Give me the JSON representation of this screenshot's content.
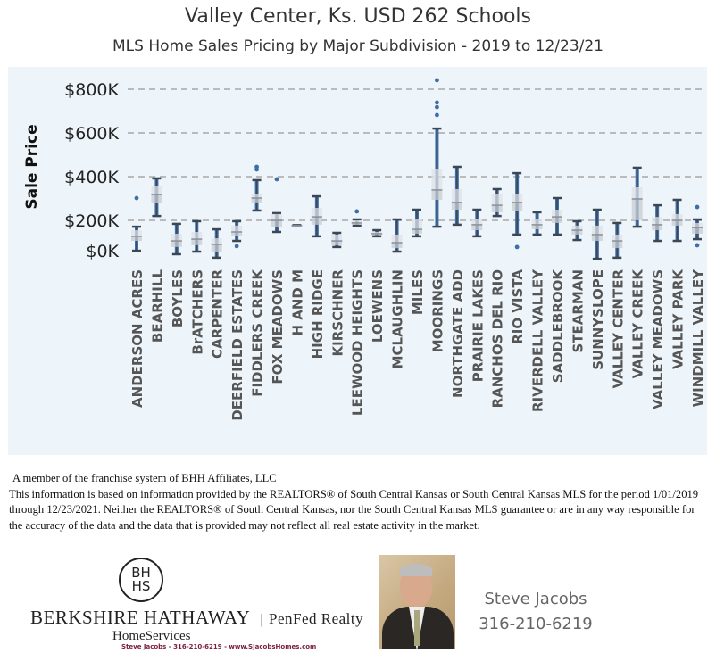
{
  "header": {
    "title": "Valley Center, Ks. USD 262 Schools",
    "subtitle": "MLS Home Sales Pricing by Major Subdivision - 2019  to 12/23/21"
  },
  "colors": {
    "background": "#eef5fa",
    "points": "#3e6ea6",
    "whisker": "#3c4756",
    "box": "#c8ccd2",
    "grid": "#bbbbbb"
  },
  "chart_data": {
    "type": "box",
    "ylabel": "Sale Price",
    "ylim": [
      0,
      850
    ],
    "yticks": [
      0,
      200,
      400,
      600,
      800
    ],
    "ytick_labels": [
      "$0K",
      "$200K",
      "$400K",
      "$600K",
      "$800K"
    ],
    "grid": "horizontal dashed",
    "units": "$K",
    "categories": [
      "ANDERSON ACRES",
      "BEARHILL",
      "BOYLES",
      "BrATCHERS",
      "CARPENTER",
      "DEERFIELD ESTATES",
      "FIDDLERS CREEK",
      "FOX MEADOWS",
      "H AND M",
      "HIGH RIDGE",
      "KIRSCHNER",
      "LEEWOOD HEIGHTS",
      "LOEWENS",
      "MCLAUGHLIN",
      "MILES",
      "MOORINGS",
      "NORTHGATE ADD",
      "PRAIRIE LAKES",
      "RANCHOS DEL RIO",
      "RIO VISTA",
      "RIVERDELL VALLEY",
      "SADDLEBROOK",
      "STEARMAN",
      "SUNNYSLOPE",
      "VALLEY CENTER",
      "VALLEY CREEK",
      "VALLEY MEADOWS",
      "VALLEY PARK",
      "WINDMILL VALLEY"
    ],
    "boxes": [
      {
        "min": 61,
        "q1": 106,
        "median": 127,
        "q3": 155,
        "max": 171,
        "outliers": [
          302
        ]
      },
      {
        "min": 220,
        "q1": 278,
        "median": 318,
        "q3": 359,
        "max": 392,
        "outliers": []
      },
      {
        "min": 45,
        "q1": 78,
        "median": 106,
        "q3": 139,
        "max": 184,
        "outliers": []
      },
      {
        "min": 57,
        "q1": 86,
        "median": 114,
        "q3": 147,
        "max": 196,
        "outliers": []
      },
      {
        "min": 29,
        "q1": 53,
        "median": 90,
        "q3": 118,
        "max": 159,
        "outliers": []
      },
      {
        "min": 106,
        "q1": 127,
        "median": 147,
        "q3": 176,
        "max": 196,
        "outliers": [
          82
        ]
      },
      {
        "min": 245,
        "q1": 282,
        "median": 302,
        "q3": 322,
        "max": 384,
        "outliers": [
          433,
          445
        ]
      },
      {
        "min": 147,
        "q1": 167,
        "median": 200,
        "q3": 229,
        "max": 233,
        "outliers": [
          388
        ]
      },
      {
        "min": 174,
        "q1": 175,
        "median": 176,
        "q3": 177,
        "max": 178,
        "outliers": []
      },
      {
        "min": 127,
        "q1": 180,
        "median": 216,
        "q3": 257,
        "max": 310,
        "outliers": []
      },
      {
        "min": 78,
        "q1": 86,
        "median": 106,
        "q3": 135,
        "max": 143,
        "outliers": []
      },
      {
        "min": 176,
        "q1": 180,
        "median": 188,
        "q3": 200,
        "max": 204,
        "outliers": [
          241
        ]
      },
      {
        "min": 127,
        "q1": 133,
        "median": 139,
        "q3": 147,
        "max": 155,
        "outliers": []
      },
      {
        "min": 57,
        "q1": 73,
        "median": 98,
        "q3": 135,
        "max": 204,
        "outliers": []
      },
      {
        "min": 127,
        "q1": 139,
        "median": 159,
        "q3": 208,
        "max": 249,
        "outliers": []
      },
      {
        "min": 171,
        "q1": 294,
        "median": 339,
        "q3": 433,
        "max": 620,
        "outliers": [
          682,
          718,
          739,
          841
        ]
      },
      {
        "min": 180,
        "q1": 249,
        "median": 282,
        "q3": 343,
        "max": 445,
        "outliers": []
      },
      {
        "min": 127,
        "q1": 155,
        "median": 180,
        "q3": 208,
        "max": 249,
        "outliers": []
      },
      {
        "min": 220,
        "q1": 237,
        "median": 269,
        "q3": 322,
        "max": 343,
        "outliers": []
      },
      {
        "min": 135,
        "q1": 241,
        "median": 282,
        "q3": 322,
        "max": 416,
        "outliers": [
          78
        ]
      },
      {
        "min": 135,
        "q1": 159,
        "median": 180,
        "q3": 208,
        "max": 237,
        "outliers": []
      },
      {
        "min": 135,
        "q1": 188,
        "median": 216,
        "q3": 249,
        "max": 302,
        "outliers": []
      },
      {
        "min": 110,
        "q1": 135,
        "median": 155,
        "q3": 176,
        "max": 196,
        "outliers": []
      },
      {
        "min": 24,
        "q1": 106,
        "median": 135,
        "q3": 176,
        "max": 249,
        "outliers": []
      },
      {
        "min": 29,
        "q1": 73,
        "median": 106,
        "q3": 135,
        "max": 188,
        "outliers": []
      },
      {
        "min": 171,
        "q1": 200,
        "median": 298,
        "q3": 351,
        "max": 441,
        "outliers": []
      },
      {
        "min": 106,
        "q1": 155,
        "median": 180,
        "q3": 216,
        "max": 269,
        "outliers": []
      },
      {
        "min": 106,
        "q1": 176,
        "median": 200,
        "q3": 229,
        "max": 294,
        "outliers": []
      },
      {
        "min": 114,
        "q1": 139,
        "median": 167,
        "q3": 188,
        "max": 204,
        "outliers": [
          86,
          261
        ]
      }
    ]
  },
  "disclaimer": {
    "member": "A member of the franchise system of BHH Affiliates, LLC",
    "text": "This information is based on information provided by the REALTORS® of South Central Kansas or South Central Kansas MLS for the period 1/01/2019 through 12/23/2021. Neither the REALTORS® of South Central Kansas, nor the South Central Kansas MLS guarantee or are in any way responsible for the accuracy of the data and the data that is provided may not reflect all real estate activity in the market."
  },
  "logo": {
    "seal_top": "BH",
    "seal_bottom": "HS",
    "brand": "BERKSHIRE HATHAWAY",
    "separator": "|",
    "partner": "PenFed Realty",
    "sub": "HomeServices",
    "contact": "Steve Jacobs  -  316-210-6219  -  www.SJacobsHomes.com"
  },
  "agent": {
    "name": "Steve Jacobs",
    "phone": "316-210-6219"
  }
}
